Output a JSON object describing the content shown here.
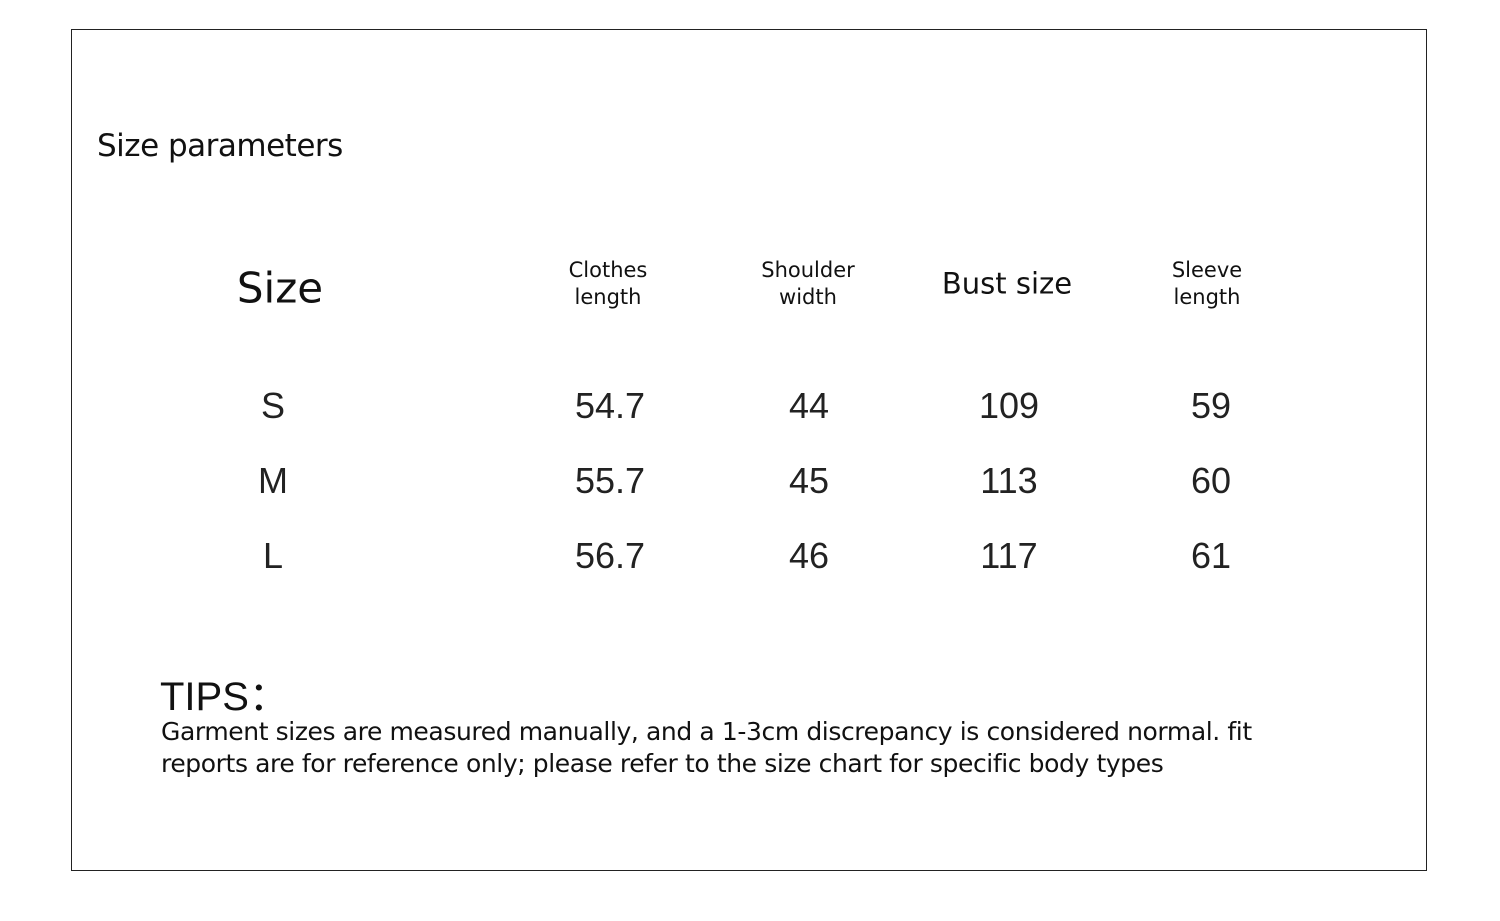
{
  "header": {
    "title": "Size parameters"
  },
  "table": {
    "columns": [
      "Size",
      "Clothes length",
      "Shoulder width",
      "Bust size",
      "Sleeve length"
    ],
    "rows": [
      [
        "S",
        54.7,
        44,
        109,
        59
      ],
      [
        "M",
        55.7,
        45,
        113,
        60
      ],
      [
        "L",
        56.7,
        46,
        117,
        61
      ]
    ]
  },
  "tips": {
    "title": "TIPS：",
    "lines": [
      "Garment sizes are measured manually, and a 1-3cm discrepancy is considered normal. fit",
      "reports are for reference only; please refer to the size chart for specific body types"
    ]
  }
}
